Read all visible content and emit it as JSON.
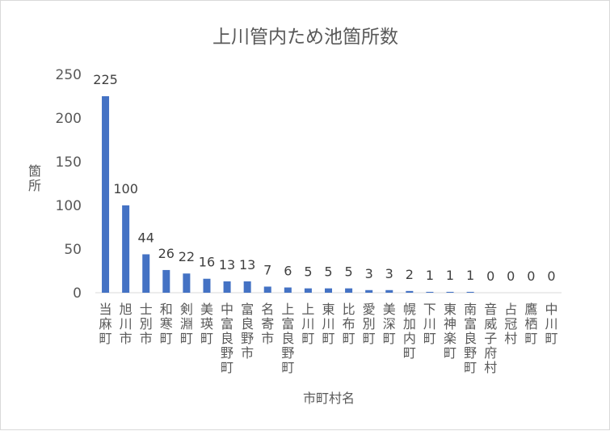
{
  "chart_data": {
    "type": "bar",
    "title": "上川管内ため池箇所数",
    "xlabel": "市町村名",
    "ylabel": "箇所",
    "ylim": [
      0,
      250
    ],
    "yticks": [
      "0",
      "50",
      "100",
      "150",
      "200",
      "250"
    ],
    "grid": false,
    "bar_color": "#4472c4",
    "categories": [
      "当麻町",
      "旭川市",
      "士別市",
      "和寒町",
      "剣淵町",
      "美瑛町",
      "中富良野町",
      "富良野市",
      "名寄市",
      "上富良野町",
      "上川町",
      "東川町",
      "比布町",
      "愛別町",
      "美深町",
      "幌加内町",
      "下川町",
      "東神楽町",
      "南富良野町",
      "音威子府村",
      "占冠村",
      "鷹栖町",
      "中川町"
    ],
    "values": [
      225,
      100,
      44,
      26,
      22,
      16,
      13,
      13,
      7,
      6,
      5,
      5,
      5,
      3,
      3,
      2,
      1,
      1,
      1,
      0,
      0,
      0,
      0
    ],
    "data_labels": [
      "225",
      "100",
      "44",
      "26",
      "22",
      "16",
      "13",
      "13",
      "7",
      "6",
      "5",
      "5",
      "5",
      "3",
      "3",
      "2",
      "1",
      "1",
      "1",
      "0",
      "0",
      "0",
      "0"
    ]
  }
}
